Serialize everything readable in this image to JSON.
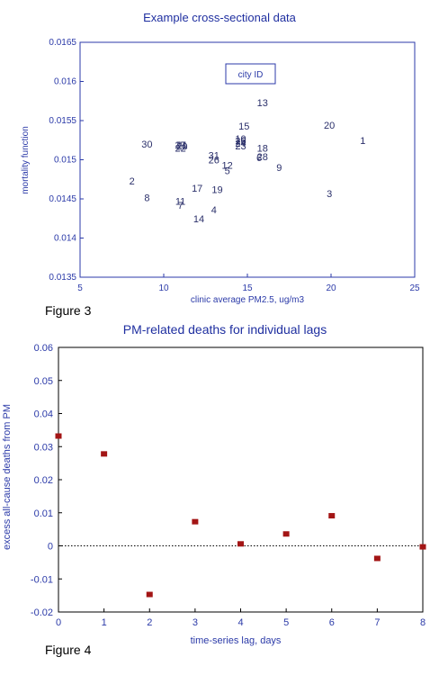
{
  "colors": {
    "axis": "#2b3aa8",
    "title": "#1f2fa0",
    "point_label": "#2a2f6a",
    "marker": "#a31515"
  },
  "chart_data": [
    {
      "type": "scatter",
      "title": "Example cross-sectional data",
      "xlabel": "clinic average PM2.5, ug/m3",
      "ylabel": "mortality function",
      "xlim": [
        5,
        25
      ],
      "ylim": [
        0.0135,
        0.0165
      ],
      "xticks": [
        "5",
        "10",
        "15",
        "20",
        "25"
      ],
      "yticks": [
        "0.0135",
        "0.014",
        "0.0145",
        "0.015",
        "0.0155",
        "0.016",
        "0.0165"
      ],
      "legend": "city ID",
      "legend_position": "top-center",
      "grid": false,
      "points": [
        {
          "label": "1",
          "x": 21.9,
          "y": 0.01525
        },
        {
          "label": "2",
          "x": 8.1,
          "y": 0.01473
        },
        {
          "label": "3",
          "x": 19.9,
          "y": 0.01457
        },
        {
          "label": "4",
          "x": 13.0,
          "y": 0.01436
        },
        {
          "label": "5",
          "x": 13.8,
          "y": 0.01486
        },
        {
          "label": "6",
          "x": 15.7,
          "y": 0.01503
        },
        {
          "label": "7",
          "x": 11.0,
          "y": 0.01442
        },
        {
          "label": "8",
          "x": 9.0,
          "y": 0.01452
        },
        {
          "label": "9",
          "x": 16.9,
          "y": 0.0149
        },
        {
          "label": "10",
          "x": 14.6,
          "y": 0.01527
        },
        {
          "label": "11",
          "x": 11.0,
          "y": 0.01447
        },
        {
          "label": "12",
          "x": 13.8,
          "y": 0.01493
        },
        {
          "label": "13",
          "x": 15.9,
          "y": 0.01573
        },
        {
          "label": "14",
          "x": 12.1,
          "y": 0.01425
        },
        {
          "label": "15",
          "x": 14.8,
          "y": 0.01543
        },
        {
          "label": "16",
          "x": 14.6,
          "y": 0.01525
        },
        {
          "label": "17",
          "x": 12.0,
          "y": 0.01464
        },
        {
          "label": "18",
          "x": 15.9,
          "y": 0.01515
        },
        {
          "label": "19",
          "x": 13.2,
          "y": 0.01462
        },
        {
          "label": "20",
          "x": 19.9,
          "y": 0.01544
        },
        {
          "label": "21",
          "x": 11.1,
          "y": 0.01519
        },
        {
          "label": "22",
          "x": 11.0,
          "y": 0.01515
        },
        {
          "label": "23",
          "x": 14.6,
          "y": 0.01518
        },
        {
          "label": "24",
          "x": 14.6,
          "y": 0.01521
        },
        {
          "label": "25",
          "x": 14.6,
          "y": 0.01524
        },
        {
          "label": "26",
          "x": 13.0,
          "y": 0.015
        },
        {
          "label": "27",
          "x": 11.0,
          "y": 0.01519
        },
        {
          "label": "28",
          "x": 15.9,
          "y": 0.01504
        },
        {
          "label": "29",
          "x": 11.1,
          "y": 0.01517
        },
        {
          "label": "30",
          "x": 9.0,
          "y": 0.0152
        },
        {
          "label": "31",
          "x": 13.0,
          "y": 0.01506
        }
      ]
    },
    {
      "type": "scatter",
      "title": "PM-related  deaths for individual lags",
      "xlabel": "time-series lag, days",
      "ylabel": "excess all-cause deaths from PM",
      "xlim": [
        0,
        8
      ],
      "ylim": [
        -0.02,
        0.06
      ],
      "xticks": [
        "0",
        "1",
        "2",
        "3",
        "4",
        "5",
        "6",
        "7",
        "8"
      ],
      "yticks": [
        "-0.02",
        "-0.01",
        "0",
        "0.01",
        "0.02",
        "0.03",
        "0.04",
        "0.05",
        "0.06"
      ],
      "reference_line": {
        "y": 0,
        "style": "dotted"
      },
      "grid": false,
      "x": [
        0,
        1,
        2,
        3,
        4,
        5,
        6,
        7,
        8
      ],
      "y": [
        0.0332,
        0.0278,
        -0.0147,
        0.0073,
        0.0006,
        0.0036,
        0.0091,
        -0.0038,
        -0.0003
      ]
    }
  ],
  "figure_labels": [
    "Figure 3",
    "Figure 4"
  ]
}
